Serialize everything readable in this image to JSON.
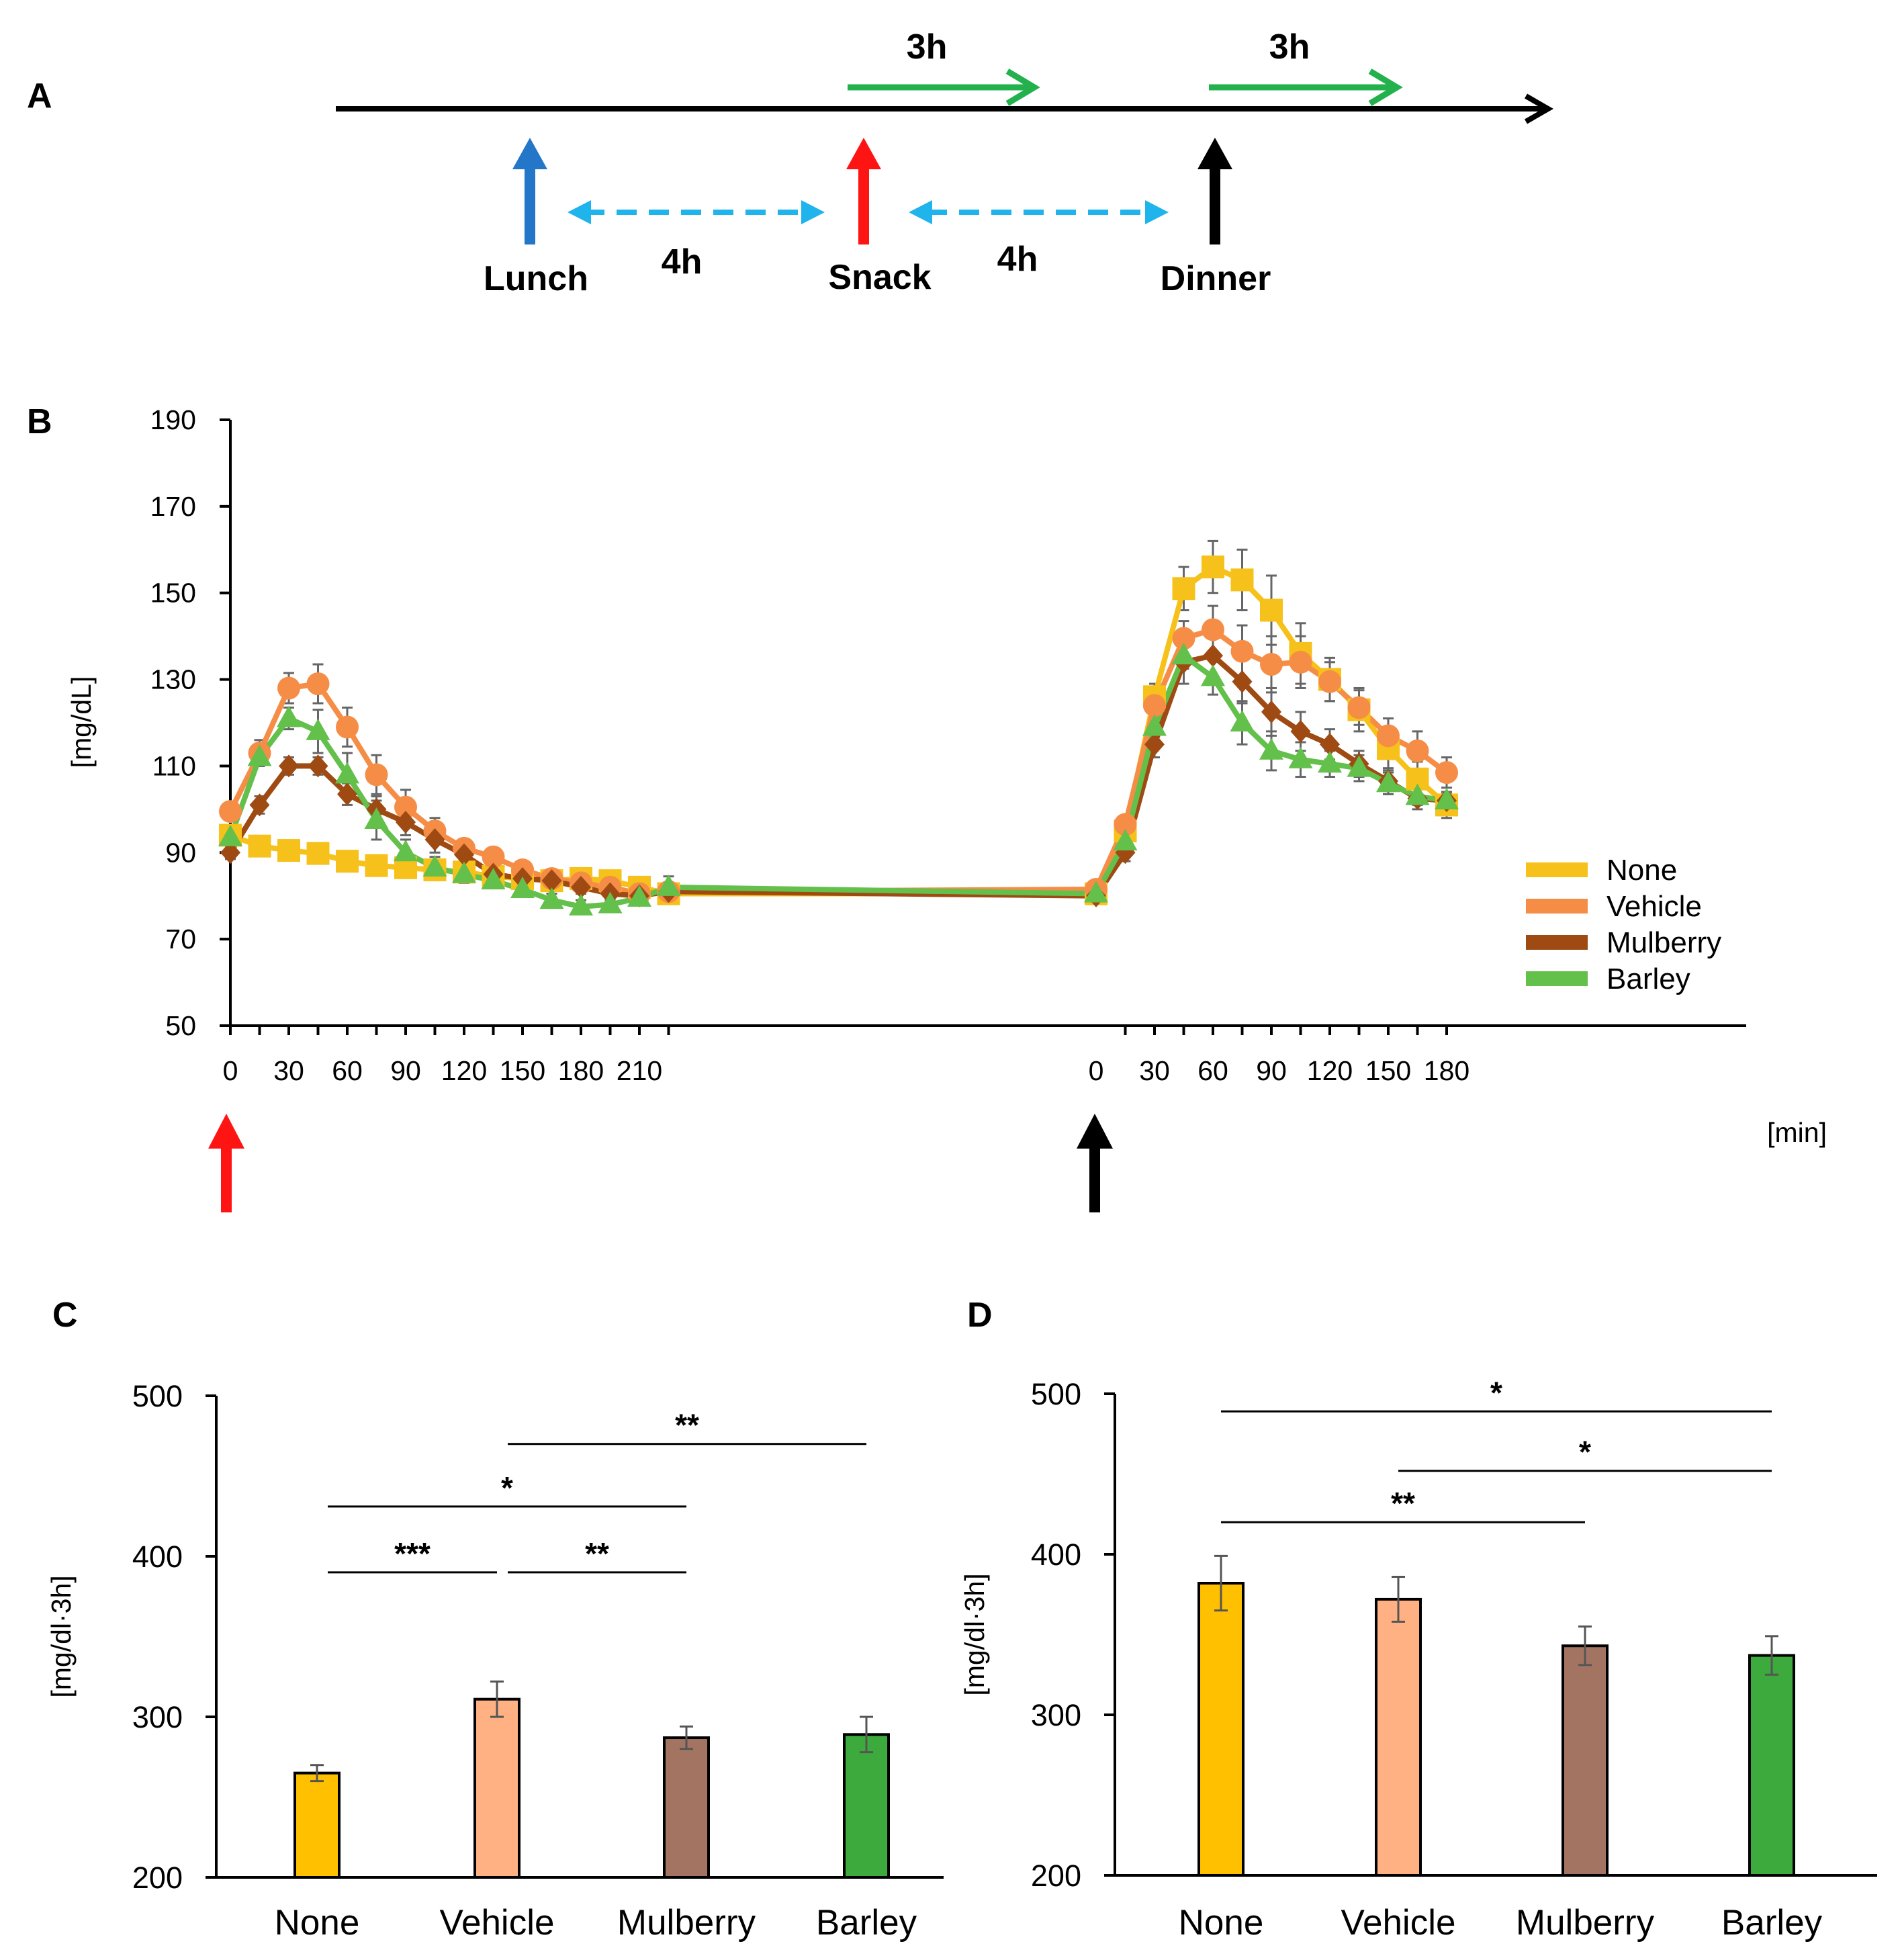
{
  "colors": {
    "none": "#F6C11A",
    "vehicle": "#F58D47",
    "mulberry": "#9E4A12",
    "barley": "#62C04B",
    "none_bar": "#FFC000",
    "vehicle_bar": "#FFB183",
    "mulberry_bar": "#A47463",
    "barley_bar": "#3CAA3C",
    "lunch_arrow": "#2477C8",
    "snack_arrow": "#FF1414",
    "dinner_arrow": "#000000",
    "interval_arrow": "#1FB4EB",
    "duration_arrow": "#22B14C"
  },
  "timeline": {
    "panel_label": "A",
    "lunch": "Lunch",
    "snack": "Snack",
    "dinner": "Dinner",
    "interval_1": "4h",
    "interval_2": "4h",
    "duration_1": "3h",
    "duration_2": "3h"
  },
  "chart_data": [
    {
      "panel": "B",
      "type": "line",
      "ylabel": "[mg/dL]",
      "xlabel": "[min]",
      "ylim": [
        50,
        190
      ],
      "yticks": [
        "50",
        "70",
        "90",
        "110",
        "130",
        "150",
        "170",
        "190"
      ],
      "xtick_labels": [
        "0",
        "30",
        "60",
        "90",
        "120",
        "150",
        "180",
        "210",
        "0",
        "30",
        "60",
        "90",
        "120",
        "150",
        "180"
      ],
      "x_segment1_min": [
        0,
        15,
        30,
        45,
        60,
        75,
        90,
        105,
        120,
        135,
        150,
        165,
        180,
        195,
        210,
        225
      ],
      "x_segment2_min": [
        0,
        15,
        30,
        45,
        60,
        75,
        90,
        105,
        120,
        135,
        150,
        165,
        180
      ],
      "legend": [
        "None",
        "Vehicle",
        "Mulberry",
        "Barley"
      ],
      "legend_position": "bottom-right",
      "series": [
        {
          "name": "None",
          "marker": "square",
          "color_key": "none",
          "segment1": [
            94,
            91.5,
            90.5,
            89.8,
            88,
            87,
            86.5,
            86,
            85.5,
            84.5,
            84,
            83.5,
            84,
            83.5,
            82,
            80.5
          ],
          "segment2": [
            80.5,
            95,
            126,
            151,
            156,
            153,
            146,
            136,
            130,
            123,
            114,
            107,
            101
          ],
          "err1": [
            1.5,
            1,
            1,
            1,
            1,
            1,
            1,
            1,
            1,
            1,
            1,
            1,
            1,
            1,
            1,
            1.5
          ],
          "err2": [
            1.5,
            2,
            3,
            5,
            6,
            7,
            8,
            7,
            5,
            5,
            5,
            4,
            3
          ]
        },
        {
          "name": "Vehicle",
          "marker": "circle",
          "color_key": "vehicle",
          "segment1": [
            99.5,
            113,
            128,
            129,
            119,
            108,
            100.5,
            95,
            91,
            89,
            86,
            84,
            83,
            82,
            80.5,
            81
          ],
          "segment2": [
            81.5,
            96.5,
            124,
            139.5,
            141.5,
            136.5,
            133.5,
            134,
            129.5,
            123.5,
            117,
            113.5,
            108.5
          ],
          "err1": [
            2,
            3,
            3.5,
            4.5,
            4.5,
            4.5,
            4,
            3,
            2,
            2,
            2,
            1.5,
            1.5,
            1.5,
            1.5,
            1.5
          ],
          "err2": [
            1.5,
            2,
            4,
            4,
            5.5,
            6,
            6.5,
            6,
            4.5,
            4,
            4,
            4.5,
            3.5
          ]
        },
        {
          "name": "Mulberry",
          "marker": "diamond",
          "color_key": "mulberry",
          "segment1": [
            90,
            101,
            110,
            110,
            103.5,
            100,
            97,
            93,
            89.5,
            85,
            84,
            83.5,
            82,
            80.5,
            80,
            81
          ],
          "segment2": [
            80,
            90,
            115,
            134,
            135.5,
            129.5,
            122.5,
            118,
            115,
            110.5,
            106.5,
            102.5,
            102
          ],
          "err1": [
            1.5,
            2,
            2,
            2,
            2.5,
            3,
            3,
            3,
            2.5,
            2,
            2,
            1.5,
            1.5,
            1.5,
            1.5,
            1.5
          ],
          "err2": [
            1.5,
            2,
            3,
            5,
            4.5,
            5,
            5.5,
            4.5,
            3.5,
            3,
            3,
            2.5,
            2
          ]
        },
        {
          "name": "Barley",
          "marker": "triangle",
          "color_key": "barley",
          "segment1": [
            93.5,
            112,
            121,
            118,
            108,
            97.5,
            90,
            86.5,
            85,
            83.5,
            81.5,
            79,
            77.5,
            78,
            79.5,
            82
          ],
          "segment2": [
            80.5,
            92.5,
            119,
            135.5,
            130.5,
            120,
            113.5,
            111.5,
            110.5,
            109.5,
            106,
            103,
            102
          ],
          "err1": [
            1.5,
            2,
            2.5,
            5,
            5,
            4.5,
            3,
            2.5,
            2,
            1.5,
            1.5,
            1.5,
            1.5,
            1.5,
            1.5,
            2.5
          ],
          "err2": [
            1.5,
            2,
            3,
            3,
            4,
            5,
            4.5,
            4,
            3,
            3,
            2.5,
            2,
            1.5
          ]
        }
      ]
    },
    {
      "panel": "C",
      "type": "bar",
      "ylabel": "[mg/dl·3h]",
      "ylim": [
        200,
        500
      ],
      "yticks": [
        "200",
        "300",
        "400",
        "500"
      ],
      "categories": [
        "None",
        "Vehicle",
        "Mulberry",
        "Barley"
      ],
      "values": [
        265,
        311,
        287,
        289
      ],
      "errors": [
        5,
        11,
        7,
        11
      ],
      "significance": [
        {
          "from": 0,
          "to": 1,
          "label": "***",
          "y": 390
        },
        {
          "from": 1,
          "to": 2,
          "label": "**",
          "y": 390
        },
        {
          "from": 0,
          "to": 2,
          "label": "*",
          "y": 431
        },
        {
          "from": 1,
          "to": 3,
          "label": "**",
          "y": 470
        }
      ]
    },
    {
      "panel": "D",
      "type": "bar",
      "ylabel": "[mg/dl·3h]",
      "ylim": [
        200,
        500
      ],
      "yticks": [
        "200",
        "300",
        "400",
        "500"
      ],
      "categories": [
        "None",
        "Vehicle",
        "Mulberry",
        "Barley"
      ],
      "values": [
        382,
        372,
        343,
        337
      ],
      "errors": [
        17,
        14,
        12,
        12
      ],
      "significance": [
        {
          "from": 0,
          "to": 3,
          "label": "*",
          "y": 489
        },
        {
          "from": 1,
          "to": 3,
          "label": "*",
          "y": 452
        },
        {
          "from": 0,
          "to": 2,
          "label": "**",
          "y": 420
        }
      ]
    }
  ]
}
